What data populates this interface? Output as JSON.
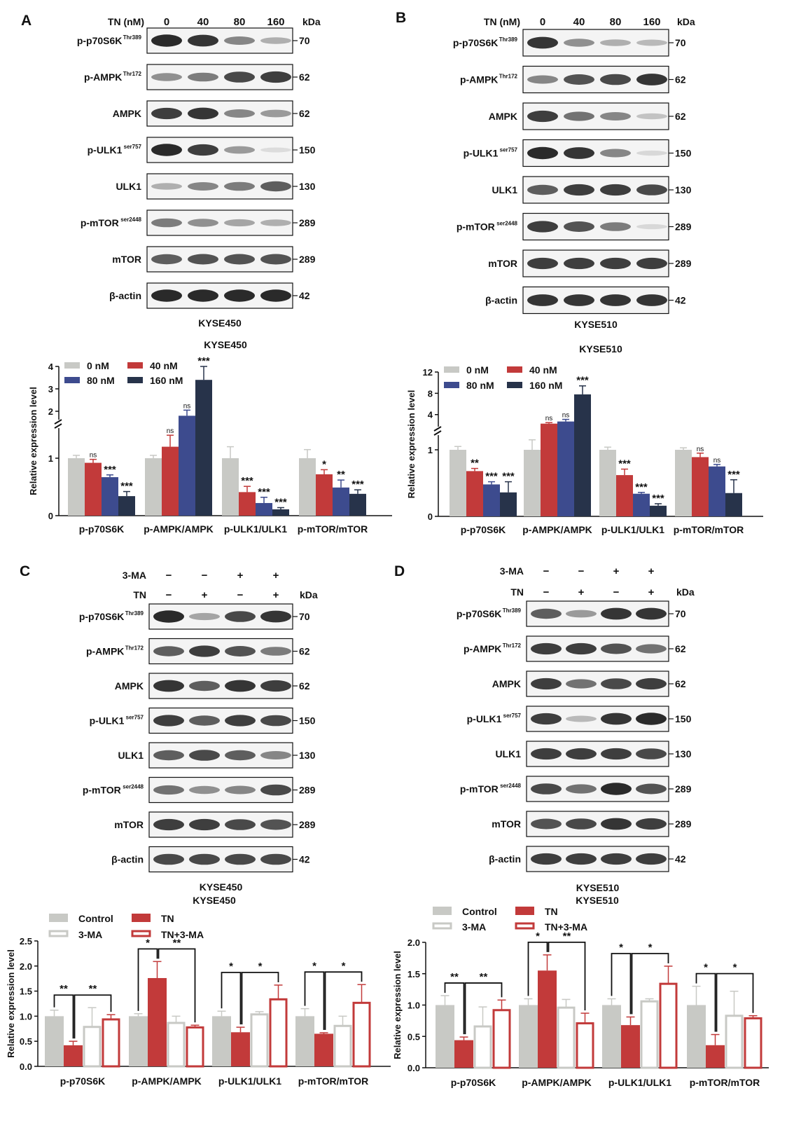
{
  "panels": [
    {
      "id": "A",
      "letter": "A",
      "header_rows": [
        {
          "label": "TN (nM)",
          "cells": [
            "0",
            "40",
            "80",
            "160"
          ]
        }
      ],
      "kda_label": "kDa",
      "cell_line": "KYSE450",
      "blots": [
        {
          "label": "p-p70S6K",
          "sup": "Thr389",
          "kda": "70",
          "int": [
            0.95,
            0.9,
            0.5,
            0.3
          ]
        },
        {
          "label": "p-AMPK",
          "sup": "Thr172",
          "kda": "62",
          "int": [
            0.45,
            0.55,
            0.8,
            0.85
          ]
        },
        {
          "label": "AMPK",
          "sup": "",
          "kda": "62",
          "int": [
            0.85,
            0.9,
            0.5,
            0.4
          ]
        },
        {
          "label": "p-ULK1",
          "sup": "ser757",
          "kda": "150",
          "int": [
            0.95,
            0.85,
            0.4,
            0.08
          ]
        },
        {
          "label": "ULK1",
          "sup": "",
          "kda": "130",
          "int": [
            0.3,
            0.5,
            0.55,
            0.7
          ]
        },
        {
          "label": "p-mTOR",
          "sup": "ser2448",
          "kda": "289",
          "int": [
            0.55,
            0.45,
            0.35,
            0.3
          ]
        },
        {
          "label": "mTOR",
          "sup": "",
          "kda": "289",
          "int": [
            0.7,
            0.75,
            0.75,
            0.75
          ]
        },
        {
          "label": "β-actin",
          "sup": "",
          "kda": "42",
          "int": [
            0.95,
            0.95,
            0.95,
            0.95
          ]
        }
      ]
    },
    {
      "id": "B",
      "letter": "B",
      "header_rows": [
        {
          "label": "TN (nM)",
          "cells": [
            "0",
            "40",
            "80",
            "160"
          ]
        }
      ],
      "kda_label": "kDa",
      "cell_line": "KYSE510",
      "blots": [
        {
          "label": "p-p70S6K",
          "sup": "Thr389",
          "kda": "70",
          "int": [
            0.9,
            0.45,
            0.3,
            0.25
          ]
        },
        {
          "label": "p-AMPK",
          "sup": "Thr172",
          "kda": "62",
          "int": [
            0.5,
            0.75,
            0.8,
            0.9
          ]
        },
        {
          "label": "AMPK",
          "sup": "",
          "kda": "62",
          "int": [
            0.85,
            0.6,
            0.5,
            0.2
          ]
        },
        {
          "label": "p-ULK1",
          "sup": "ser757",
          "kda": "150",
          "int": [
            0.95,
            0.9,
            0.5,
            0.1
          ]
        },
        {
          "label": "ULK1",
          "sup": "",
          "kda": "130",
          "int": [
            0.7,
            0.85,
            0.85,
            0.8
          ]
        },
        {
          "label": "p-mTOR",
          "sup": "ser2448",
          "kda": "289",
          "int": [
            0.85,
            0.75,
            0.55,
            0.1
          ]
        },
        {
          "label": "mTOR",
          "sup": "",
          "kda": "289",
          "int": [
            0.85,
            0.85,
            0.85,
            0.85
          ]
        },
        {
          "label": "β-actin",
          "sup": "",
          "kda": "42",
          "int": [
            0.9,
            0.9,
            0.9,
            0.9
          ]
        }
      ]
    },
    {
      "id": "C",
      "letter": "C",
      "header_rows": [
        {
          "label": "3-MA",
          "cells": [
            "−",
            "−",
            "+",
            "+"
          ]
        },
        {
          "label": "TN",
          "cells": [
            "−",
            "+",
            "−",
            "+"
          ]
        }
      ],
      "kda_label": "kDa",
      "cell_line": "KYSE450",
      "blots": [
        {
          "label": "p-p70S6K",
          "sup": "Thr389",
          "kda": "70",
          "int": [
            0.95,
            0.35,
            0.8,
            0.9
          ]
        },
        {
          "label": "p-AMPK",
          "sup": "Thr172",
          "kda": "62",
          "int": [
            0.7,
            0.85,
            0.75,
            0.55
          ]
        },
        {
          "label": "AMPK",
          "sup": "",
          "kda": "62",
          "int": [
            0.9,
            0.7,
            0.9,
            0.85
          ]
        },
        {
          "label": "p-ULK1",
          "sup": "ser757",
          "kda": "150",
          "int": [
            0.85,
            0.7,
            0.85,
            0.8
          ]
        },
        {
          "label": "ULK1",
          "sup": "",
          "kda": "130",
          "int": [
            0.7,
            0.8,
            0.7,
            0.5
          ]
        },
        {
          "label": "p-mTOR",
          "sup": "ser2448",
          "kda": "289",
          "int": [
            0.6,
            0.45,
            0.5,
            0.8
          ]
        },
        {
          "label": "mTOR",
          "sup": "",
          "kda": "289",
          "int": [
            0.85,
            0.85,
            0.8,
            0.75
          ]
        },
        {
          "label": "β-actin",
          "sup": "",
          "kda": "42",
          "int": [
            0.8,
            0.8,
            0.8,
            0.8
          ]
        }
      ]
    },
    {
      "id": "D",
      "letter": "D",
      "header_rows": [
        {
          "label": "3-MA",
          "cells": [
            "−",
            "−",
            "+",
            "+"
          ]
        },
        {
          "label": "TN",
          "cells": [
            "−",
            "+",
            "−",
            "+"
          ]
        }
      ],
      "kda_label": "kDa",
      "cell_line": "KYSE510",
      "blots": [
        {
          "label": "p-p70S6K",
          "sup": "Thr389",
          "kda": "70",
          "int": [
            0.7,
            0.4,
            0.9,
            0.9
          ]
        },
        {
          "label": "p-AMPK",
          "sup": "Thr172",
          "kda": "62",
          "int": [
            0.85,
            0.85,
            0.75,
            0.6
          ]
        },
        {
          "label": "AMPK",
          "sup": "",
          "kda": "62",
          "int": [
            0.85,
            0.6,
            0.8,
            0.85
          ]
        },
        {
          "label": "p-ULK1",
          "sup": "ser757",
          "kda": "150",
          "int": [
            0.85,
            0.25,
            0.9,
            0.95
          ]
        },
        {
          "label": "ULK1",
          "sup": "",
          "kda": "130",
          "int": [
            0.85,
            0.85,
            0.85,
            0.8
          ]
        },
        {
          "label": "p-mTOR",
          "sup": "ser2448",
          "kda": "289",
          "int": [
            0.8,
            0.6,
            0.95,
            0.75
          ]
        },
        {
          "label": "mTOR",
          "sup": "",
          "kda": "289",
          "int": [
            0.75,
            0.8,
            0.9,
            0.85
          ]
        },
        {
          "label": "β-actin",
          "sup": "",
          "kda": "42",
          "int": [
            0.85,
            0.85,
            0.85,
            0.85
          ]
        }
      ]
    }
  ],
  "colors": {
    "gray": "#c8c9c5",
    "red": "#c23a3a",
    "blue": "#3d4b8e",
    "navy": "#27334a",
    "hollow_fill": "#ffffff"
  },
  "chart_data": [
    {
      "id": "A",
      "type": "bar",
      "title": "KYSE450",
      "ylabel": "Relative expression level",
      "categories": [
        "p-p70S6K",
        "p-AMPK/AMPK",
        "p-ULK1/ULK1",
        "p-mTOR/mTOR"
      ],
      "axis_break": {
        "lower": [
          0,
          1.5
        ],
        "upper": [
          1.5,
          4
        ]
      },
      "yticks_lower": [
        0,
        1
      ],
      "yticks_upper": [
        2,
        3,
        4
      ],
      "legend": "top-left",
      "series": [
        {
          "name": "0 nM",
          "color": "gray",
          "values": [
            1.0,
            1.0,
            1.0,
            1.0
          ],
          "errors": [
            0.05,
            0.05,
            0.2,
            0.15
          ],
          "sig": [
            "",
            "",
            "",
            ""
          ]
        },
        {
          "name": "40 nM",
          "color": "red",
          "values": [
            0.92,
            1.2,
            0.41,
            0.72
          ],
          "errors": [
            0.06,
            0.2,
            0.1,
            0.08
          ],
          "sig": [
            "ns",
            "ns",
            "***",
            "*"
          ]
        },
        {
          "name": "80 nM",
          "color": "blue",
          "values": [
            0.67,
            1.8,
            0.22,
            0.49
          ],
          "errors": [
            0.04,
            0.25,
            0.1,
            0.13
          ],
          "sig": [
            "***",
            "ns",
            "***",
            "**"
          ]
        },
        {
          "name": "160 nM",
          "color": "navy",
          "values": [
            0.34,
            3.4,
            0.11,
            0.38
          ],
          "errors": [
            0.08,
            0.6,
            0.03,
            0.07
          ],
          "sig": [
            "***",
            "***",
            "***",
            "***"
          ]
        }
      ]
    },
    {
      "id": "B",
      "type": "bar",
      "title": "KYSE510",
      "ylabel": "Relative expression level",
      "categories": [
        "p-p70S6K",
        "p-AMPK/AMPK",
        "p-ULK1/ULK1",
        "p-mTOR/mTOR"
      ],
      "axis_break": {
        "lower": [
          0,
          1.2
        ],
        "upper": [
          1.2,
          12
        ]
      },
      "yticks_lower": [
        0,
        1
      ],
      "yticks_upper": [
        4,
        8,
        12
      ],
      "legend": "top-left",
      "series": [
        {
          "name": "0 nM",
          "color": "gray",
          "values": [
            1.0,
            1.0,
            1.0,
            1.0
          ],
          "errors": [
            0.05,
            0.15,
            0.04,
            0.03
          ],
          "sig": [
            "",
            "",
            "",
            ""
          ]
        },
        {
          "name": "40 nM",
          "color": "red",
          "values": [
            0.68,
            2.3,
            0.62,
            0.89
          ],
          "errors": [
            0.04,
            0.2,
            0.09,
            0.06
          ],
          "sig": [
            "**",
            "ns",
            "***",
            "ns"
          ]
        },
        {
          "name": "80 nM",
          "color": "blue",
          "values": [
            0.48,
            2.7,
            0.34,
            0.75
          ],
          "errors": [
            0.04,
            0.4,
            0.02,
            0.03
          ],
          "sig": [
            "***",
            "ns",
            "***",
            "ns"
          ]
        },
        {
          "name": "160 nM",
          "color": "navy",
          "values": [
            0.36,
            7.8,
            0.16,
            0.35
          ],
          "errors": [
            0.16,
            1.6,
            0.03,
            0.2
          ],
          "sig": [
            "***",
            "***",
            "***",
            "***"
          ]
        }
      ]
    },
    {
      "id": "C",
      "type": "bar",
      "title": "KYSE450",
      "ylabel": "Relative expression level",
      "categories": [
        "p-p70S6K",
        "p-AMPK/AMPK",
        "p-ULK1/ULK1",
        "p-mTOR/mTOR"
      ],
      "ylim": [
        0,
        2.5
      ],
      "yticks": [
        "0.0",
        "0.5",
        "1.0",
        "1.5",
        "2.0",
        "2.5"
      ],
      "legend": "top-left",
      "series": [
        {
          "name": "Control",
          "color": "gray",
          "hollow": false,
          "values": [
            1.0,
            1.0,
            1.0,
            1.0
          ],
          "errors": [
            0.12,
            0.05,
            0.1,
            0.15
          ]
        },
        {
          "name": "TN",
          "color": "red",
          "hollow": false,
          "values": [
            0.42,
            1.76,
            0.68,
            0.65
          ],
          "errors": [
            0.08,
            0.33,
            0.1,
            0.02
          ]
        },
        {
          "name": "3-MA",
          "color": "gray",
          "hollow": true,
          "values": [
            0.8,
            0.88,
            1.05,
            0.82
          ],
          "errors": [
            0.37,
            0.12,
            0.04,
            0.18
          ]
        },
        {
          "name": "TN+3-MA",
          "color": "red",
          "hollow": true,
          "values": [
            0.95,
            0.79,
            1.35,
            1.28
          ],
          "errors": [
            0.08,
            0.03,
            0.27,
            0.35
          ]
        }
      ],
      "significance": [
        {
          "labels": [
            "**",
            "**"
          ]
        },
        {
          "labels": [
            "*",
            "**"
          ]
        },
        {
          "labels": [
            "*",
            "*"
          ]
        },
        {
          "labels": [
            "*",
            "*"
          ]
        }
      ]
    },
    {
      "id": "D",
      "type": "bar",
      "title": "KYSE510",
      "ylabel": "Relative expression level",
      "categories": [
        "p-p70S6K",
        "p-AMPK/AMPK",
        "p-ULK1/ULK1",
        "p-mTOR/mTOR"
      ],
      "ylim": [
        0,
        2.0
      ],
      "yticks": [
        "0.0",
        "0.5",
        "1.0",
        "1.5",
        "2.0"
      ],
      "legend": "top-left",
      "series": [
        {
          "name": "Control",
          "color": "gray",
          "hollow": false,
          "values": [
            1.0,
            1.0,
            1.0,
            1.0
          ],
          "errors": [
            0.15,
            0.1,
            0.1,
            0.3
          ]
        },
        {
          "name": "TN",
          "color": "red",
          "hollow": false,
          "values": [
            0.44,
            1.55,
            0.68,
            0.36
          ],
          "errors": [
            0.05,
            0.25,
            0.13,
            0.17
          ]
        },
        {
          "name": "3-MA",
          "color": "gray",
          "hollow": true,
          "values": [
            0.67,
            0.97,
            1.07,
            0.84
          ],
          "errors": [
            0.3,
            0.12,
            0.03,
            0.38
          ]
        },
        {
          "name": "TN+3-MA",
          "color": "red",
          "hollow": true,
          "values": [
            0.93,
            0.72,
            1.35,
            0.8
          ],
          "errors": [
            0.15,
            0.15,
            0.27,
            0.03
          ]
        }
      ],
      "significance": [
        {
          "labels": [
            "**",
            "**"
          ]
        },
        {
          "labels": [
            "*",
            "**"
          ]
        },
        {
          "labels": [
            "*",
            "*"
          ]
        },
        {
          "labels": [
            "*",
            "*"
          ]
        }
      ]
    }
  ]
}
